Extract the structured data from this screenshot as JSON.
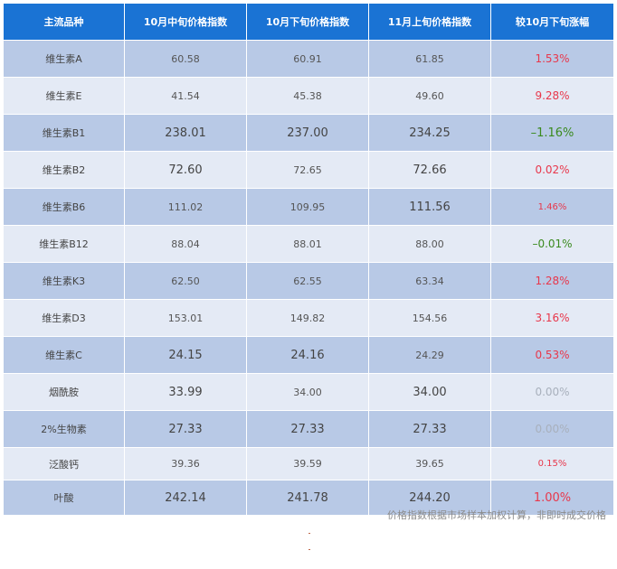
{
  "table": {
    "headers": [
      "主流品种",
      "10月中旬价格指数",
      "10月下旬价格指数",
      "11月上旬价格指数",
      "较10月下旬涨幅"
    ],
    "rows": [
      {
        "name": "维生素A",
        "c1": "60.58",
        "c2": "60.91",
        "c3": "61.85",
        "chg": "1.53%",
        "trend": "up"
      },
      {
        "name": "维生素E",
        "c1": "41.54",
        "c2": "45.38",
        "c3": "49.60",
        "chg": "9.28%",
        "trend": "up"
      },
      {
        "name": "维生素B1",
        "c1": "238.01",
        "c2": "237.00",
        "c3": "234.25",
        "chg": "–1.16%",
        "trend": "down"
      },
      {
        "name": "维生素B2",
        "c1": "72.60",
        "c2": "72.65",
        "c3": "72.66",
        "chg": "0.02%",
        "trend": "up"
      },
      {
        "name": "维生素B6",
        "c1": "111.02",
        "c2": "109.95",
        "c3": "111.56",
        "chg": "1.46%",
        "trend": "up"
      },
      {
        "name": "维生素B12",
        "c1": "88.04",
        "c2": "88.01",
        "c3": "88.00",
        "chg": "–0.01%",
        "trend": "down"
      },
      {
        "name": "维生素K3",
        "c1": "62.50",
        "c2": "62.55",
        "c3": "63.34",
        "chg": "1.28%",
        "trend": "up"
      },
      {
        "name": "维生素D3",
        "c1": "153.01",
        "c2": "149.82",
        "c3": "154.56",
        "chg": "3.16%",
        "trend": "up"
      },
      {
        "name": "维生素C",
        "c1": "24.15",
        "c2": "24.16",
        "c3": "24.29",
        "chg": "0.53%",
        "trend": "up"
      },
      {
        "name": "烟酰胺",
        "c1": "33.99",
        "c2": "34.00",
        "c3": "34.00",
        "chg": "0.00%",
        "trend": "flat"
      },
      {
        "name": "2%生物素",
        "c1": "27.33",
        "c2": "27.33",
        "c3": "27.33",
        "chg": "0.00%",
        "trend": "flat"
      },
      {
        "name": "泛酸钙",
        "c1": "39.36",
        "c2": "39.59",
        "c3": "39.65",
        "chg": "0.15%",
        "trend": "up"
      },
      {
        "name": "叶酸",
        "c1": "242.14",
        "c2": "241.78",
        "c3": "244.20",
        "chg": "1.00%",
        "trend": "up"
      }
    ]
  },
  "note": "价格指数根据市场样本加权计算，非即时成交价格",
  "colors": {
    "header": "#1a73d4",
    "row_dark": "#b8c9e6",
    "row_light": "#e4eaf5",
    "up": "#e8374b",
    "down": "#3a8a1e",
    "flat": "#a8b0bc"
  }
}
